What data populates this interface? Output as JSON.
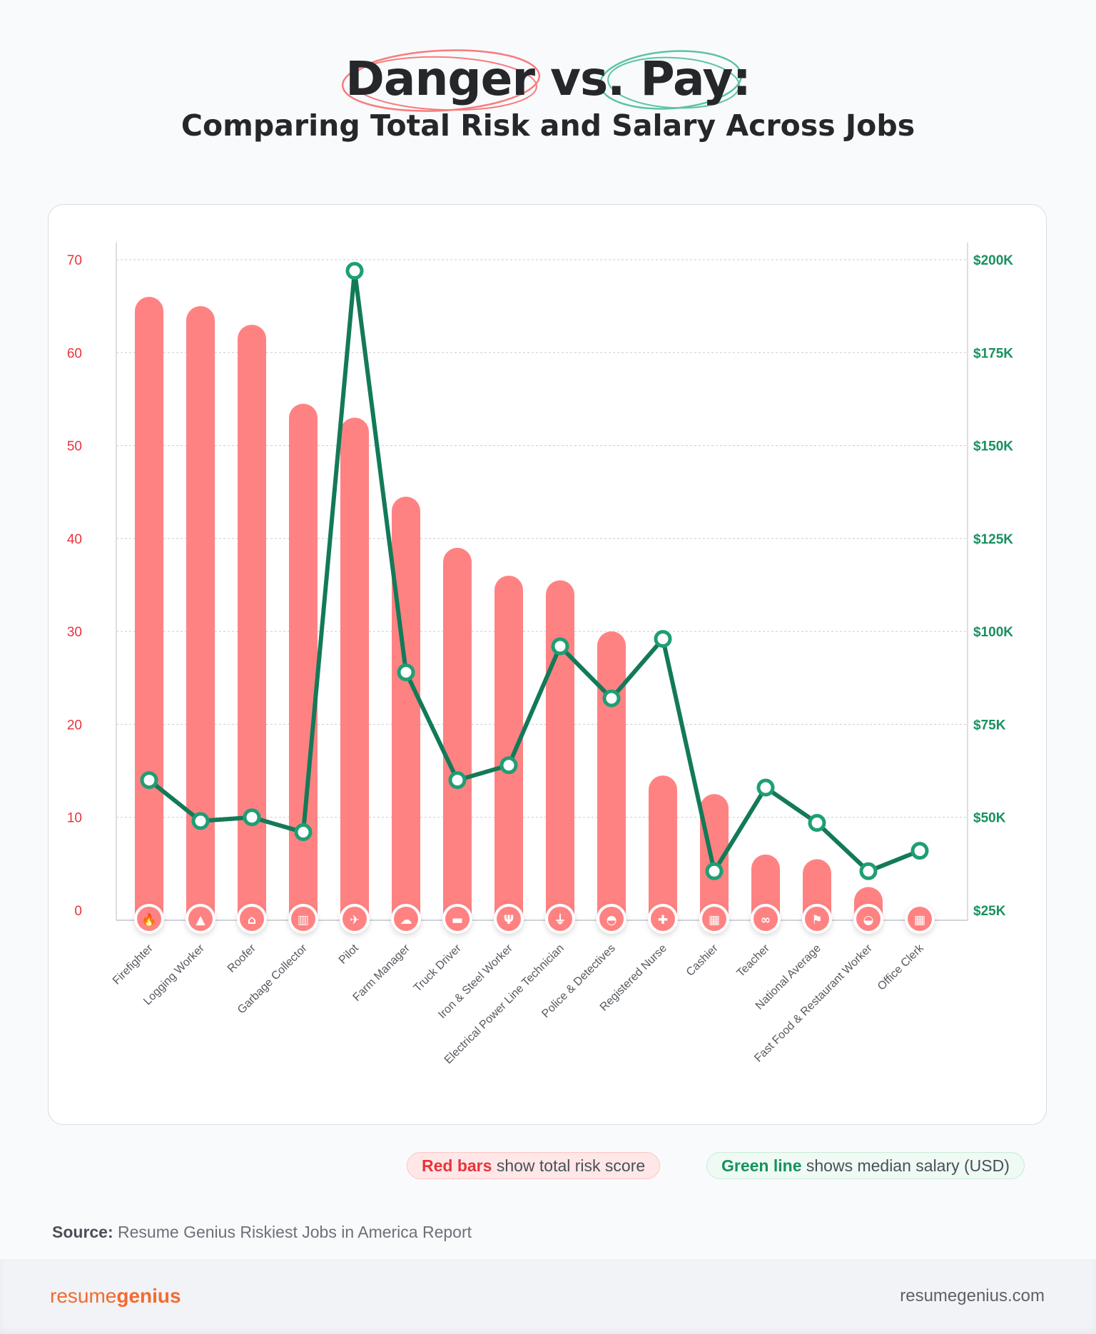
{
  "header": {
    "title_word1": "Danger",
    "title_mid": " vs. ",
    "title_word2": "Pay:",
    "subtitle": "Comparing Total Risk and Salary Across Jobs"
  },
  "colors": {
    "bar": "#ff8282",
    "line": "#137a58",
    "left_axis": "#e8333a",
    "right_axis": "#17915f",
    "title_circle_red": "#f77c7c",
    "title_circle_green": "#5cc4a0"
  },
  "chart_data": {
    "type": "bar+line",
    "categories": [
      "Firefighter",
      "Logging Worker",
      "Roofer",
      "Garbage Collector",
      "Pilot",
      "Farm Manager",
      "Truck Driver",
      "Iron & Steel Worker",
      "Electrical Power Line Technician",
      "Police & Detectives",
      "Registered Nurse",
      "Cashier",
      "Teacher",
      "National Average",
      "Fast Food & Restaurant Worker",
      "Office Clerk"
    ],
    "icons": [
      "fire-icon",
      "tree-icon",
      "house-people-icon",
      "trash-icon",
      "airplane-icon",
      "sheep-icon",
      "truck-icon",
      "wrench-icon",
      "plug-icon",
      "siren-icon",
      "hand-medical-icon",
      "cash-register-icon",
      "glasses-icon",
      "flag-icon",
      "fast-food-icon",
      "building-icon"
    ],
    "series": [
      {
        "axis": "left",
        "type": "bar",
        "values": [
          66,
          65,
          63,
          54.5,
          53,
          44.5,
          39,
          36,
          35.5,
          30,
          14.5,
          12.5,
          6,
          5.5,
          2.5,
          0
        ]
      },
      {
        "axis": "right",
        "type": "line",
        "values": [
          60000,
          49000,
          50000,
          46000,
          197000,
          89000,
          60000,
          64000,
          96000,
          82000,
          98000,
          35500,
          58000,
          48500,
          35500,
          41000
        ]
      }
    ],
    "left_axis": {
      "ylim": [
        0,
        70
      ],
      "ticks": [
        "0",
        "10",
        "20",
        "30",
        "40",
        "50",
        "60",
        "70"
      ]
    },
    "right_axis": {
      "ylim": [
        25000,
        200000
      ],
      "ticks": [
        "$25K",
        "$50K",
        "$75K",
        "$100K",
        "$125K",
        "$150K",
        "$175K",
        "$200K"
      ]
    },
    "grid": true
  },
  "legend": {
    "red_highlight": "Red bars",
    "red_text": " show total risk score",
    "green_highlight": "Green line",
    "green_text": " shows median salary (USD)"
  },
  "source": {
    "label": "Source:",
    "text": " Resume Genius Riskiest Jobs in America Report"
  },
  "footer": {
    "logo_part1": "resume",
    "logo_part2": "genius",
    "site": "resumegenius.com"
  }
}
